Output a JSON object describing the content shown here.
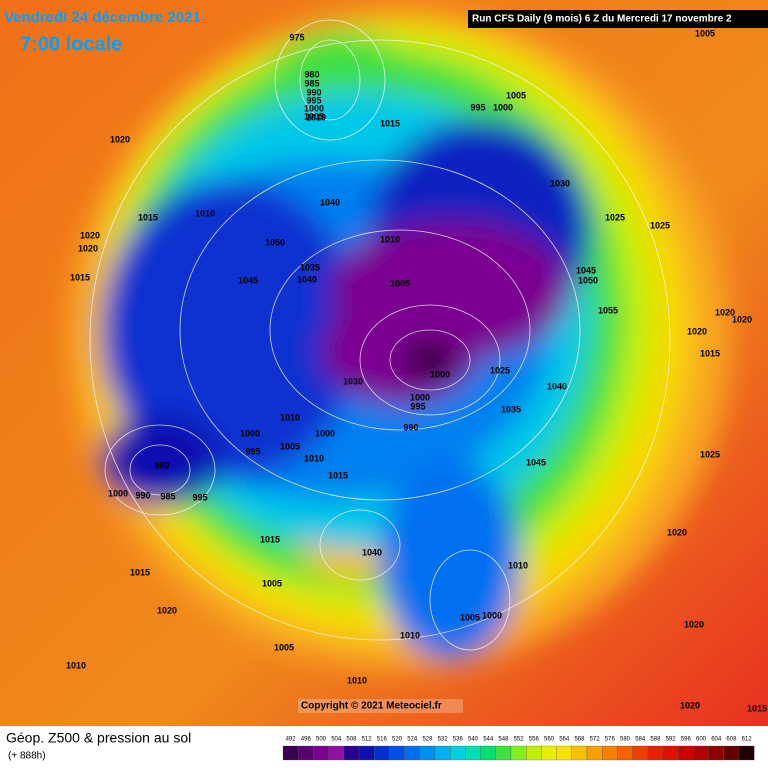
{
  "header": {
    "date": "Vendredi 24 décembre 2021",
    "time": "7:00 locale",
    "run": "Run CFS Daily (9 mois) 6 Z du Mercredi 17 novembre 2"
  },
  "copyright": "Copyright © 2021 Meteociel.fr",
  "footer": {
    "title": "Géop. Z500 & pression au sol",
    "subtitle": "(+ 888h)"
  },
  "scale": {
    "labels": [
      492,
      496,
      500,
      504,
      508,
      512,
      516,
      520,
      524,
      528,
      532,
      536,
      540,
      544,
      548,
      552,
      556,
      560,
      564,
      568,
      572,
      576,
      580,
      584,
      588,
      592,
      596,
      600,
      604,
      608,
      612
    ],
    "colors": [
      "#3a0050",
      "#5a0070",
      "#7a0090",
      "#90109f",
      "#2a0090",
      "#1010b0",
      "#0030d0",
      "#0050e8",
      "#0070f0",
      "#0090f0",
      "#00b0f0",
      "#00d0e0",
      "#00e0b0",
      "#00e070",
      "#40e040",
      "#80f020",
      "#c0f000",
      "#e8f000",
      "#f8e000",
      "#f8c000",
      "#f8a000",
      "#f88000",
      "#f86000",
      "#f04000",
      "#e82000",
      "#e01000",
      "#d00000",
      "#b00000",
      "#900000",
      "#600000",
      "#200000"
    ]
  },
  "map": {
    "pressure_labels": [
      "975",
      "980",
      "985",
      "990",
      "995",
      "1000",
      "1005",
      "1010",
      "1020",
      "1015",
      "995",
      "1000",
      "1005",
      "1005",
      "1040",
      "1010",
      "1015",
      "1050",
      "1010",
      "1030",
      "1025",
      "1025",
      "1020",
      "1020",
      "1015",
      "1045",
      "1035",
      "1040",
      "1005",
      "1045",
      "1050",
      "1055",
      "1020",
      "1020",
      "1020",
      "1015",
      "1030",
      "1000",
      "1025",
      "1040",
      "1000",
      "995",
      "990",
      "1035",
      "1010",
      "1000",
      "995",
      "1005",
      "1000",
      "1010",
      "1015",
      "1045",
      "1025",
      "980",
      "1000",
      "990",
      "985",
      "995",
      "1015",
      "1040",
      "1020",
      "1010",
      "1005",
      "1015",
      "1020",
      "1005",
      "1000",
      "1010",
      "1020",
      "1005",
      "1010",
      "1010",
      "1020",
      "1015"
    ]
  }
}
